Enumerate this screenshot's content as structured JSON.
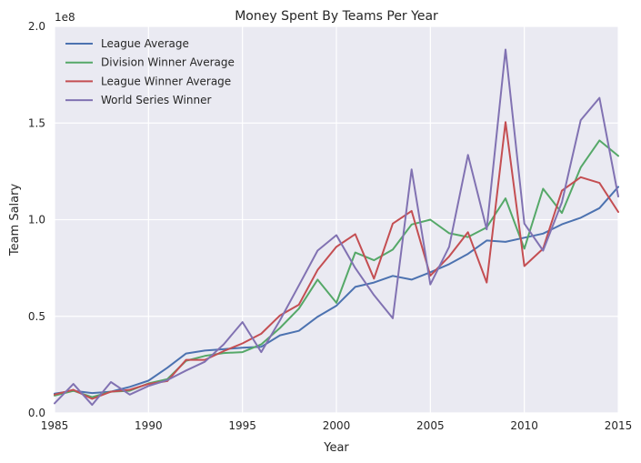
{
  "chart_data": {
    "type": "line",
    "title": "Money Spent By Teams Per Year",
    "xlabel": "Year",
    "ylabel": "Team Salary",
    "offset_text": "1e8",
    "xlim": [
      1985,
      2015
    ],
    "ylim": [
      0,
      200000000
    ],
    "x_ticks": [
      1985,
      1990,
      1995,
      2000,
      2005,
      2010,
      2015
    ],
    "y_ticks": [
      0,
      50000000,
      100000000,
      150000000,
      200000000
    ],
    "y_tick_labels": [
      "0.0",
      "0.5",
      "1.0",
      "1.5",
      "2.0"
    ],
    "grid": true,
    "legend_position": "upper-left",
    "x": [
      1985,
      1986,
      1987,
      1988,
      1989,
      1990,
      1991,
      1992,
      1993,
      1994,
      1995,
      1996,
      1997,
      1998,
      1999,
      2000,
      2001,
      2002,
      2003,
      2004,
      2005,
      2006,
      2007,
      2008,
      2009,
      2010,
      2011,
      2012,
      2013,
      2014,
      2015
    ],
    "series": [
      {
        "name": "League Average",
        "color": "#4c72b0",
        "values": [
          10000000,
          11500000,
          10300000,
          11000000,
          13500000,
          16700000,
          23400000,
          30800000,
          32300000,
          33000000,
          33800000,
          34200000,
          40200000,
          42500000,
          49800000,
          55500000,
          65200000,
          67500000,
          70900000,
          69000000,
          72800000,
          77000000,
          82300000,
          89200000,
          88500000,
          90700000,
          92800000,
          97600000,
          101000000,
          106000000,
          117000000
        ]
      },
      {
        "name": "Division Winner Average",
        "color": "#55a868",
        "values": [
          9000000,
          11500000,
          8200000,
          11000000,
          11500000,
          15300000,
          17500000,
          27000000,
          29500000,
          31000000,
          31500000,
          35500000,
          44000000,
          54000000,
          69000000,
          57000000,
          83000000,
          79000000,
          84500000,
          97500000,
          100000000,
          93000000,
          91000000,
          96000000,
          111000000,
          85000000,
          116000000,
          103500000,
          127000000,
          141000000,
          133000000
        ]
      },
      {
        "name": "League Winner Average",
        "color": "#c44e52",
        "values": [
          9500000,
          12000000,
          7300000,
          11000000,
          12000000,
          15000000,
          16500000,
          27500000,
          27500000,
          32000000,
          36000000,
          41000000,
          50500000,
          56000000,
          74000000,
          86000000,
          92500000,
          69500000,
          98000000,
          104500000,
          71000000,
          81000000,
          93500000,
          67500000,
          150500000,
          76000000,
          85000000,
          115000000,
          122000000,
          119000000,
          104000000
        ]
      },
      {
        "name": "World Series Winner",
        "color": "#8172b2",
        "values": [
          5000000,
          15000000,
          4200000,
          16000000,
          9500000,
          14000000,
          17000000,
          22000000,
          26500000,
          35500000,
          47000000,
          31500000,
          48000000,
          66000000,
          84000000,
          92000000,
          75000000,
          61000000,
          49000000,
          126000000,
          66500000,
          86000000,
          133500000,
          95000000,
          188000000,
          98000000,
          84000000,
          109000000,
          151500000,
          163000000,
          112000000
        ]
      }
    ]
  }
}
